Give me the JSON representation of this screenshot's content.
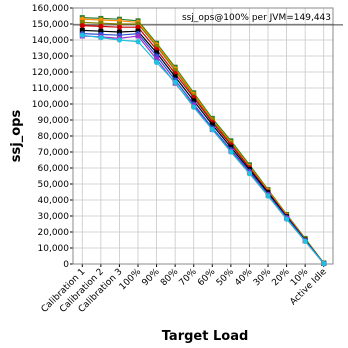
{
  "chart_data": {
    "type": "line",
    "x_label": "Target Load",
    "y_label": "ssj_ops",
    "annotation": "ssj_ops@100% per JVM=149,443",
    "reference_value": 149443,
    "categories": [
      "Calibration 1",
      "Calibration 2",
      "Calibration 3",
      "100%",
      "90%",
      "80%",
      "70%",
      "60%",
      "50%",
      "40%",
      "30%",
      "20%",
      "10%",
      "Active Idle"
    ],
    "ylim": [
      0,
      160000
    ],
    "yticks": [
      {
        "value": 0,
        "label": "0"
      },
      {
        "value": 10000,
        "label": "10,000"
      },
      {
        "value": 20000,
        "label": "20,000"
      },
      {
        "value": 30000,
        "label": "30,000"
      },
      {
        "value": 40000,
        "label": "40,000"
      },
      {
        "value": 50000,
        "label": "50,000"
      },
      {
        "value": 60000,
        "label": "60,000"
      },
      {
        "value": 70000,
        "label": "70,000"
      },
      {
        "value": 80000,
        "label": "80,000"
      },
      {
        "value": 90000,
        "label": "90,000"
      },
      {
        "value": 100000,
        "label": "100,000"
      },
      {
        "value": 110000,
        "label": "110,000"
      },
      {
        "value": 120000,
        "label": "120,000"
      },
      {
        "value": 130000,
        "label": "130,000"
      },
      {
        "value": 140000,
        "label": "140,000"
      },
      {
        "value": 150000,
        "label": "150,000"
      },
      {
        "value": 160000,
        "label": "160,000"
      }
    ],
    "grid": true,
    "series": [
      {
        "color": "#2e7d32",
        "values": [
          154000,
          153500,
          153000,
          152000,
          138000,
          123000,
          107000,
          91000,
          77000,
          62000,
          46500,
          31000,
          16000,
          600
        ]
      },
      {
        "color": "#ff8c00",
        "values": [
          153000,
          152500,
          152000,
          151000,
          137000,
          122000,
          106000,
          90000,
          76000,
          61000,
          46000,
          30500,
          15500,
          500
        ]
      },
      {
        "color": "#808000",
        "values": [
          151000,
          150500,
          150000,
          150000,
          136000,
          121000,
          105000,
          89500,
          75500,
          60500,
          45500,
          30000,
          15300,
          500
        ]
      },
      {
        "color": "#cc0000",
        "values": [
          149000,
          148500,
          148000,
          148000,
          134000,
          119000,
          104000,
          88500,
          74500,
          60000,
          45000,
          29800,
          15000,
          400
        ]
      },
      {
        "color": "#000000",
        "values": [
          146000,
          145500,
          145000,
          145500,
          132000,
          117000,
          102000,
          87000,
          73000,
          59000,
          44500,
          29500,
          14900,
          400
        ]
      },
      {
        "color": "#3050d0",
        "values": [
          144000,
          143500,
          143000,
          144000,
          130000,
          115000,
          100000,
          85000,
          71500,
          58000,
          43500,
          29000,
          14600,
          300
        ]
      },
      {
        "color": "#9932cc",
        "values": [
          142500,
          142000,
          141000,
          142500,
          128000,
          113000,
          99000,
          84000,
          70500,
          57000,
          43000,
          28500,
          14400,
          300
        ]
      },
      {
        "color": "#20c0e0",
        "values": [
          143000,
          141500,
          140000,
          139000,
          126000,
          113500,
          98000,
          84000,
          70000,
          56500,
          42500,
          28000,
          14200,
          300
        ]
      }
    ]
  }
}
